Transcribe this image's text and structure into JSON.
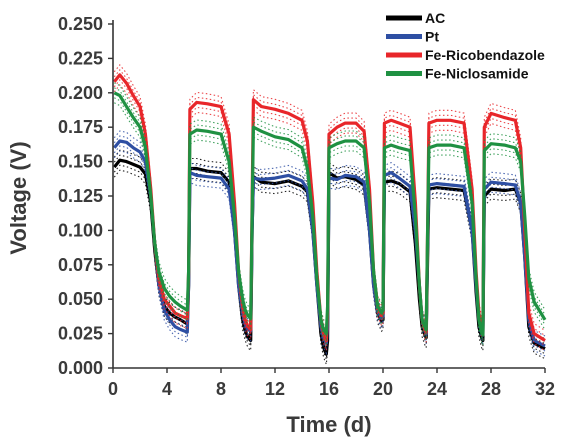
{
  "chart_data": {
    "type": "line",
    "title": "",
    "xlabel": "Time (d)",
    "ylabel": "Voltage (V)",
    "xlim": [
      0,
      32
    ],
    "ylim": [
      0.0,
      0.25
    ],
    "xticks": [
      0,
      4,
      8,
      12,
      16,
      20,
      24,
      28,
      32
    ],
    "xtick_labels": [
      "0",
      "4",
      "8",
      "12",
      "16",
      "20",
      "24",
      "28",
      "32"
    ],
    "yticks": [
      0.0,
      0.025,
      0.05,
      0.075,
      0.1,
      0.125,
      0.15,
      0.175,
      0.2,
      0.225,
      0.25
    ],
    "ytick_labels": [
      "0.000",
      "0.025",
      "0.050",
      "0.075",
      "0.100",
      "0.125",
      "0.150",
      "0.175",
      "0.200",
      "0.225",
      "0.250"
    ],
    "grid": false,
    "legend_position": "top-right",
    "series": [
      {
        "name": "AC",
        "color": "#000000",
        "x": [
          0.1,
          0.5,
          1.0,
          1.5,
          2.0,
          2.4,
          2.8,
          3.1,
          3.4,
          3.8,
          4.2,
          4.6,
          5.0,
          5.5,
          5.6,
          5.7,
          6.2,
          7.0,
          8.0,
          8.6,
          9.0,
          9.3,
          9.6,
          9.8,
          10.0,
          10.2,
          10.3,
          10.4,
          11.0,
          12.0,
          13.0,
          14.0,
          14.4,
          14.8,
          15.1,
          15.4,
          15.6,
          15.8,
          15.9,
          16.0,
          16.6,
          17.2,
          18.0,
          18.6,
          19.0,
          19.3,
          19.6,
          19.9,
          20.0,
          20.1,
          20.6,
          21.2,
          22.0,
          22.4,
          22.7,
          22.9,
          23.1,
          23.2,
          23.3,
          23.4,
          24.0,
          25.0,
          26.0,
          26.6,
          26.9,
          27.1,
          27.3,
          27.4,
          27.5,
          28.0,
          29.0,
          29.8,
          30.2,
          30.5,
          30.8,
          31.2,
          32.0
        ],
        "y": [
          0.146,
          0.151,
          0.15,
          0.148,
          0.146,
          0.141,
          0.12,
          0.085,
          0.06,
          0.045,
          0.04,
          0.037,
          0.035,
          0.032,
          0.06,
          0.145,
          0.145,
          0.143,
          0.142,
          0.135,
          0.1,
          0.06,
          0.035,
          0.027,
          0.022,
          0.02,
          0.1,
          0.139,
          0.135,
          0.134,
          0.136,
          0.132,
          0.128,
          0.1,
          0.06,
          0.025,
          0.015,
          0.01,
          0.02,
          0.142,
          0.138,
          0.139,
          0.137,
          0.133,
          0.1,
          0.06,
          0.04,
          0.034,
          0.035,
          0.135,
          0.136,
          0.134,
          0.128,
          0.09,
          0.05,
          0.03,
          0.024,
          0.022,
          0.08,
          0.13,
          0.131,
          0.13,
          0.129,
          0.1,
          0.055,
          0.03,
          0.022,
          0.02,
          0.125,
          0.13,
          0.129,
          0.13,
          0.12,
          0.08,
          0.03,
          0.018,
          0.014
        ]
      },
      {
        "name": "Pt",
        "color": "#2e4fa3",
        "x": [
          0.1,
          0.5,
          1.0,
          1.5,
          2.0,
          2.4,
          2.8,
          3.1,
          3.4,
          3.8,
          4.2,
          4.6,
          5.0,
          5.5,
          5.6,
          5.7,
          6.2,
          7.0,
          8.0,
          8.6,
          9.0,
          9.3,
          9.6,
          9.8,
          10.0,
          10.2,
          10.3,
          10.4,
          11.0,
          12.0,
          13.0,
          14.0,
          14.4,
          14.8,
          15.1,
          15.4,
          15.6,
          15.8,
          15.9,
          16.0,
          16.6,
          17.2,
          18.0,
          18.6,
          19.0,
          19.3,
          19.6,
          19.9,
          20.0,
          20.1,
          20.6,
          21.2,
          22.0,
          22.4,
          22.7,
          22.9,
          23.1,
          23.2,
          23.3,
          23.4,
          24.0,
          25.0,
          26.0,
          26.6,
          26.9,
          27.1,
          27.3,
          27.4,
          27.5,
          28.0,
          29.0,
          29.8,
          30.2,
          30.5,
          30.8,
          31.2,
          32.0
        ],
        "y": [
          0.16,
          0.165,
          0.164,
          0.16,
          0.157,
          0.15,
          0.125,
          0.09,
          0.06,
          0.042,
          0.035,
          0.03,
          0.028,
          0.026,
          0.06,
          0.142,
          0.14,
          0.139,
          0.138,
          0.13,
          0.1,
          0.06,
          0.04,
          0.032,
          0.028,
          0.027,
          0.1,
          0.138,
          0.137,
          0.138,
          0.14,
          0.136,
          0.13,
          0.1,
          0.06,
          0.03,
          0.022,
          0.018,
          0.03,
          0.138,
          0.137,
          0.14,
          0.139,
          0.135,
          0.1,
          0.06,
          0.042,
          0.036,
          0.038,
          0.14,
          0.142,
          0.138,
          0.132,
          0.1,
          0.06,
          0.035,
          0.028,
          0.025,
          0.09,
          0.133,
          0.134,
          0.133,
          0.132,
          0.1,
          0.06,
          0.035,
          0.027,
          0.025,
          0.13,
          0.135,
          0.134,
          0.133,
          0.12,
          0.08,
          0.035,
          0.02,
          0.016
        ]
      },
      {
        "name": "Fe-Ricobendazole",
        "color": "#e8262a",
        "x": [
          0.1,
          0.5,
          1.0,
          1.5,
          2.0,
          2.4,
          2.8,
          3.1,
          3.4,
          3.8,
          4.2,
          4.6,
          5.0,
          5.5,
          5.6,
          5.7,
          6.2,
          7.0,
          8.0,
          8.6,
          9.0,
          9.3,
          9.6,
          9.8,
          10.0,
          10.2,
          10.3,
          10.4,
          11.0,
          12.0,
          13.0,
          14.0,
          14.4,
          14.8,
          15.1,
          15.4,
          15.6,
          15.8,
          15.9,
          16.0,
          16.6,
          17.2,
          18.0,
          18.6,
          19.0,
          19.3,
          19.6,
          19.9,
          20.0,
          20.1,
          20.6,
          21.2,
          22.0,
          22.4,
          22.7,
          22.9,
          23.1,
          23.2,
          23.3,
          23.4,
          24.0,
          25.0,
          26.0,
          26.6,
          26.9,
          27.1,
          27.3,
          27.4,
          27.5,
          28.0,
          29.0,
          29.8,
          30.2,
          30.5,
          30.8,
          31.2,
          32.0
        ],
        "y": [
          0.208,
          0.213,
          0.207,
          0.198,
          0.19,
          0.17,
          0.13,
          0.09,
          0.065,
          0.05,
          0.045,
          0.04,
          0.038,
          0.036,
          0.07,
          0.188,
          0.193,
          0.192,
          0.19,
          0.17,
          0.12,
          0.07,
          0.045,
          0.035,
          0.03,
          0.028,
          0.12,
          0.195,
          0.19,
          0.188,
          0.185,
          0.18,
          0.165,
          0.12,
          0.07,
          0.035,
          0.025,
          0.02,
          0.04,
          0.17,
          0.175,
          0.178,
          0.178,
          0.172,
          0.13,
          0.07,
          0.045,
          0.038,
          0.04,
          0.178,
          0.18,
          0.178,
          0.175,
          0.12,
          0.06,
          0.035,
          0.028,
          0.026,
          0.1,
          0.178,
          0.18,
          0.18,
          0.178,
          0.13,
          0.07,
          0.04,
          0.03,
          0.028,
          0.175,
          0.185,
          0.182,
          0.18,
          0.16,
          0.1,
          0.04,
          0.025,
          0.02
        ]
      },
      {
        "name": "Fe-Niclosamide",
        "color": "#1f9142",
        "x": [
          0.1,
          0.5,
          1.0,
          1.5,
          2.0,
          2.4,
          2.8,
          3.1,
          3.4,
          3.8,
          4.2,
          4.6,
          5.0,
          5.5,
          5.6,
          5.7,
          6.2,
          7.0,
          8.0,
          8.6,
          9.0,
          9.3,
          9.6,
          9.8,
          10.0,
          10.2,
          10.3,
          10.4,
          11.0,
          12.0,
          13.0,
          14.0,
          14.4,
          14.8,
          15.1,
          15.4,
          15.6,
          15.8,
          15.9,
          16.0,
          16.6,
          17.2,
          18.0,
          18.6,
          19.0,
          19.3,
          19.6,
          19.9,
          20.0,
          20.1,
          20.6,
          21.2,
          22.0,
          22.4,
          22.7,
          22.9,
          23.1,
          23.2,
          23.3,
          23.4,
          24.0,
          25.0,
          26.0,
          26.6,
          26.9,
          27.1,
          27.3,
          27.4,
          27.5,
          28.0,
          29.0,
          29.8,
          30.2,
          30.5,
          30.8,
          31.2,
          32.0
        ],
        "y": [
          0.2,
          0.198,
          0.19,
          0.182,
          0.175,
          0.16,
          0.125,
          0.09,
          0.07,
          0.058,
          0.052,
          0.048,
          0.045,
          0.042,
          0.07,
          0.17,
          0.173,
          0.172,
          0.17,
          0.15,
          0.11,
          0.07,
          0.05,
          0.042,
          0.038,
          0.036,
          0.11,
          0.175,
          0.172,
          0.168,
          0.166,
          0.16,
          0.145,
          0.11,
          0.065,
          0.035,
          0.028,
          0.025,
          0.045,
          0.16,
          0.163,
          0.165,
          0.165,
          0.16,
          0.12,
          0.07,
          0.045,
          0.04,
          0.042,
          0.16,
          0.162,
          0.16,
          0.158,
          0.11,
          0.06,
          0.035,
          0.03,
          0.028,
          0.1,
          0.16,
          0.162,
          0.162,
          0.16,
          0.12,
          0.065,
          0.035,
          0.026,
          0.024,
          0.158,
          0.163,
          0.162,
          0.16,
          0.15,
          0.11,
          0.065,
          0.048,
          0.035
        ]
      }
    ]
  }
}
